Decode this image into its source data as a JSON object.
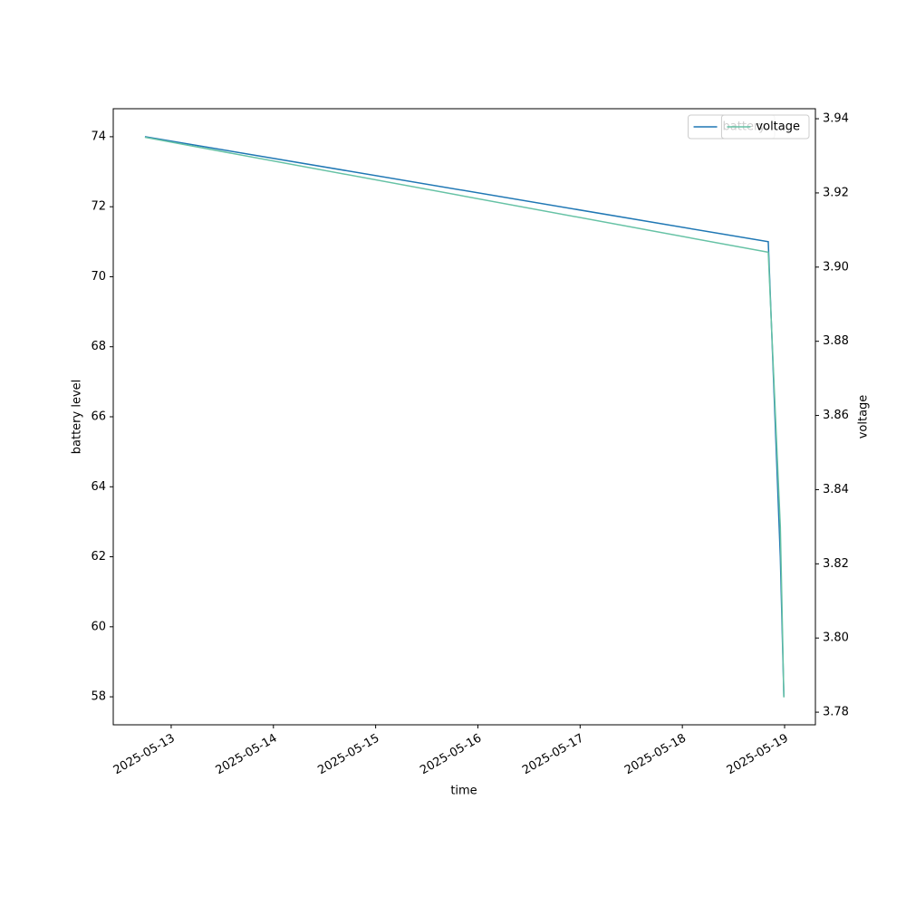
{
  "chart_data": {
    "type": "line",
    "xlabel": "time",
    "ylabel": "battery level",
    "y2label": "voltage",
    "x": [
      "2025-05-12T17:50",
      "2025-05-18T20:10",
      "2025-05-18T23:00",
      "2025-05-18T23:50"
    ],
    "series": [
      {
        "name": "battery",
        "color": "#1f77b4",
        "values": [
          74,
          71,
          62,
          58
        ]
      },
      {
        "name": "voltage",
        "color": "#66c2a5",
        "axis": "y2",
        "values": [
          3.935,
          3.904,
          3.83,
          3.784
        ]
      }
    ],
    "xlim": [
      "2025-05-12T10:24",
      "2025-05-19T07:14"
    ],
    "xticks": [
      "2025-05-13",
      "2025-05-14",
      "2025-05-15",
      "2025-05-16",
      "2025-05-17",
      "2025-05-18",
      "2025-05-19"
    ],
    "ylim": [
      57.2,
      74.8
    ],
    "yticks": [
      58,
      60,
      62,
      64,
      66,
      68,
      70,
      72,
      74
    ],
    "y2lim": [
      3.7766,
      3.9427
    ],
    "y2ticks": [
      3.78,
      {
        "value": 3.8,
        "label": "3.80"
      },
      3.82,
      3.84,
      3.86,
      3.88,
      {
        "value": 3.9,
        "label": "3.90"
      },
      3.92,
      3.94
    ],
    "legend": "upper right"
  }
}
